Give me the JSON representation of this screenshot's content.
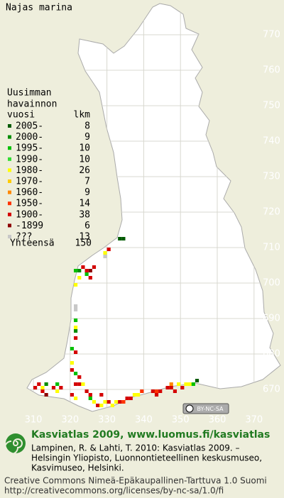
{
  "title": "Najas marina",
  "legend": {
    "heading": [
      "Uusimman",
      "havainnon",
      "vuosi"
    ],
    "count_heading": "lkm",
    "classes": [
      {
        "label": "2005-",
        "count": 8,
        "color": "#005a00"
      },
      {
        "label": "2000-",
        "count": 9,
        "color": "#008c00"
      },
      {
        "label": "1995-",
        "count": 10,
        "color": "#00c000"
      },
      {
        "label": "1990-",
        "count": 10,
        "color": "#33dd33"
      },
      {
        "label": "1980-",
        "count": 26,
        "color": "#ffff00"
      },
      {
        "label": "1970-",
        "count": 7,
        "color": "#ffcc00"
      },
      {
        "label": "1960-",
        "count": 9,
        "color": "#ff8800"
      },
      {
        "label": "1950-",
        "count": 14,
        "color": "#ff3300"
      },
      {
        "label": "1900-",
        "count": 38,
        "color": "#d40000"
      },
      {
        "label": "-1899",
        "count": 6,
        "color": "#8c0000"
      },
      {
        "label": "???",
        "count": 13,
        "color": "#c8c8c8"
      }
    ],
    "total_label": "Yhteensä",
    "total": 150
  },
  "grid": {
    "north_labels": [
      770,
      760,
      750,
      740,
      730,
      720,
      710,
      700,
      690,
      680,
      670
    ],
    "east_labels": [
      310,
      320,
      330,
      340,
      350,
      360,
      370
    ]
  },
  "occurrences": [
    [
      333,
      712,
      0
    ],
    [
      334,
      712,
      0
    ],
    [
      330,
      709,
      8
    ],
    [
      329,
      708,
      4
    ],
    [
      329,
      707,
      10
    ],
    [
      321,
      703,
      2
    ],
    [
      322,
      703,
      1
    ],
    [
      323,
      704,
      8
    ],
    [
      324,
      703,
      8
    ],
    [
      325,
      703,
      9
    ],
    [
      326,
      704,
      8
    ],
    [
      324,
      702,
      2
    ],
    [
      322,
      701,
      4
    ],
    [
      325,
      701,
      8
    ],
    [
      321,
      699,
      4
    ],
    [
      321,
      693,
      10
    ],
    [
      321,
      692,
      10
    ],
    [
      321,
      689,
      2
    ],
    [
      321,
      687,
      4
    ],
    [
      321,
      686,
      1
    ],
    [
      321,
      684,
      8
    ],
    [
      320,
      681,
      2
    ],
    [
      321,
      680,
      8
    ],
    [
      320,
      677,
      4
    ],
    [
      320,
      675,
      8
    ],
    [
      321,
      674,
      2
    ],
    [
      322,
      673,
      8
    ],
    [
      310,
      670,
      8
    ],
    [
      311,
      671,
      8
    ],
    [
      312,
      670,
      4
    ],
    [
      313,
      671,
      1
    ],
    [
      312,
      669,
      8
    ],
    [
      313,
      668,
      9
    ],
    [
      315,
      670,
      8
    ],
    [
      316,
      671,
      2
    ],
    [
      316,
      669,
      4
    ],
    [
      317,
      670,
      8
    ],
    [
      320,
      668,
      8
    ],
    [
      321,
      667,
      4
    ],
    [
      321,
      671,
      8
    ],
    [
      322,
      671,
      8
    ],
    [
      323,
      671,
      4
    ],
    [
      324,
      669,
      8
    ],
    [
      325,
      668,
      8
    ],
    [
      325,
      667,
      2
    ],
    [
      326,
      666,
      4
    ],
    [
      327,
      665,
      8
    ],
    [
      328,
      665,
      4
    ],
    [
      328,
      668,
      8
    ],
    [
      329,
      666,
      4
    ],
    [
      330,
      666,
      8
    ],
    [
      331,
      665,
      4
    ],
    [
      332,
      666,
      4
    ],
    [
      333,
      666,
      8
    ],
    [
      334,
      666,
      7
    ],
    [
      335,
      667,
      8
    ],
    [
      336,
      667,
      8
    ],
    [
      337,
      668,
      4
    ],
    [
      338,
      668,
      4
    ],
    [
      339,
      669,
      7
    ],
    [
      342,
      669,
      8
    ],
    [
      343,
      668,
      8
    ],
    [
      343,
      669,
      7
    ],
    [
      344,
      669,
      8
    ],
    [
      346,
      670,
      8
    ],
    [
      347,
      670,
      8
    ],
    [
      347,
      671,
      6
    ],
    [
      348,
      669,
      8
    ],
    [
      349,
      671,
      4
    ],
    [
      350,
      670,
      8
    ],
    [
      351,
      671,
      4
    ],
    [
      352,
      671,
      4
    ],
    [
      353,
      671,
      2
    ],
    [
      354,
      672,
      0
    ]
  ],
  "cc_badge": "BY-NC-SA",
  "footer": {
    "site": "Kasviatlas 2009, www.luomus.fi/kasviatlas",
    "citation": [
      "Lampinen, R. & Lahti, T. 2010: Kasviatlas 2009. –",
      "Helsingin Yliopisto, Luonnontieteellinen keskusmuseo,",
      "Kasvimuseo, Helsinki."
    ],
    "license": [
      "Creative Commons Nimeä-Epäkaupallinen-Tarttuva 1.0 Suomi",
      "http://creativecommons.org/licenses/by-nc-sa/1.0/fi"
    ]
  }
}
